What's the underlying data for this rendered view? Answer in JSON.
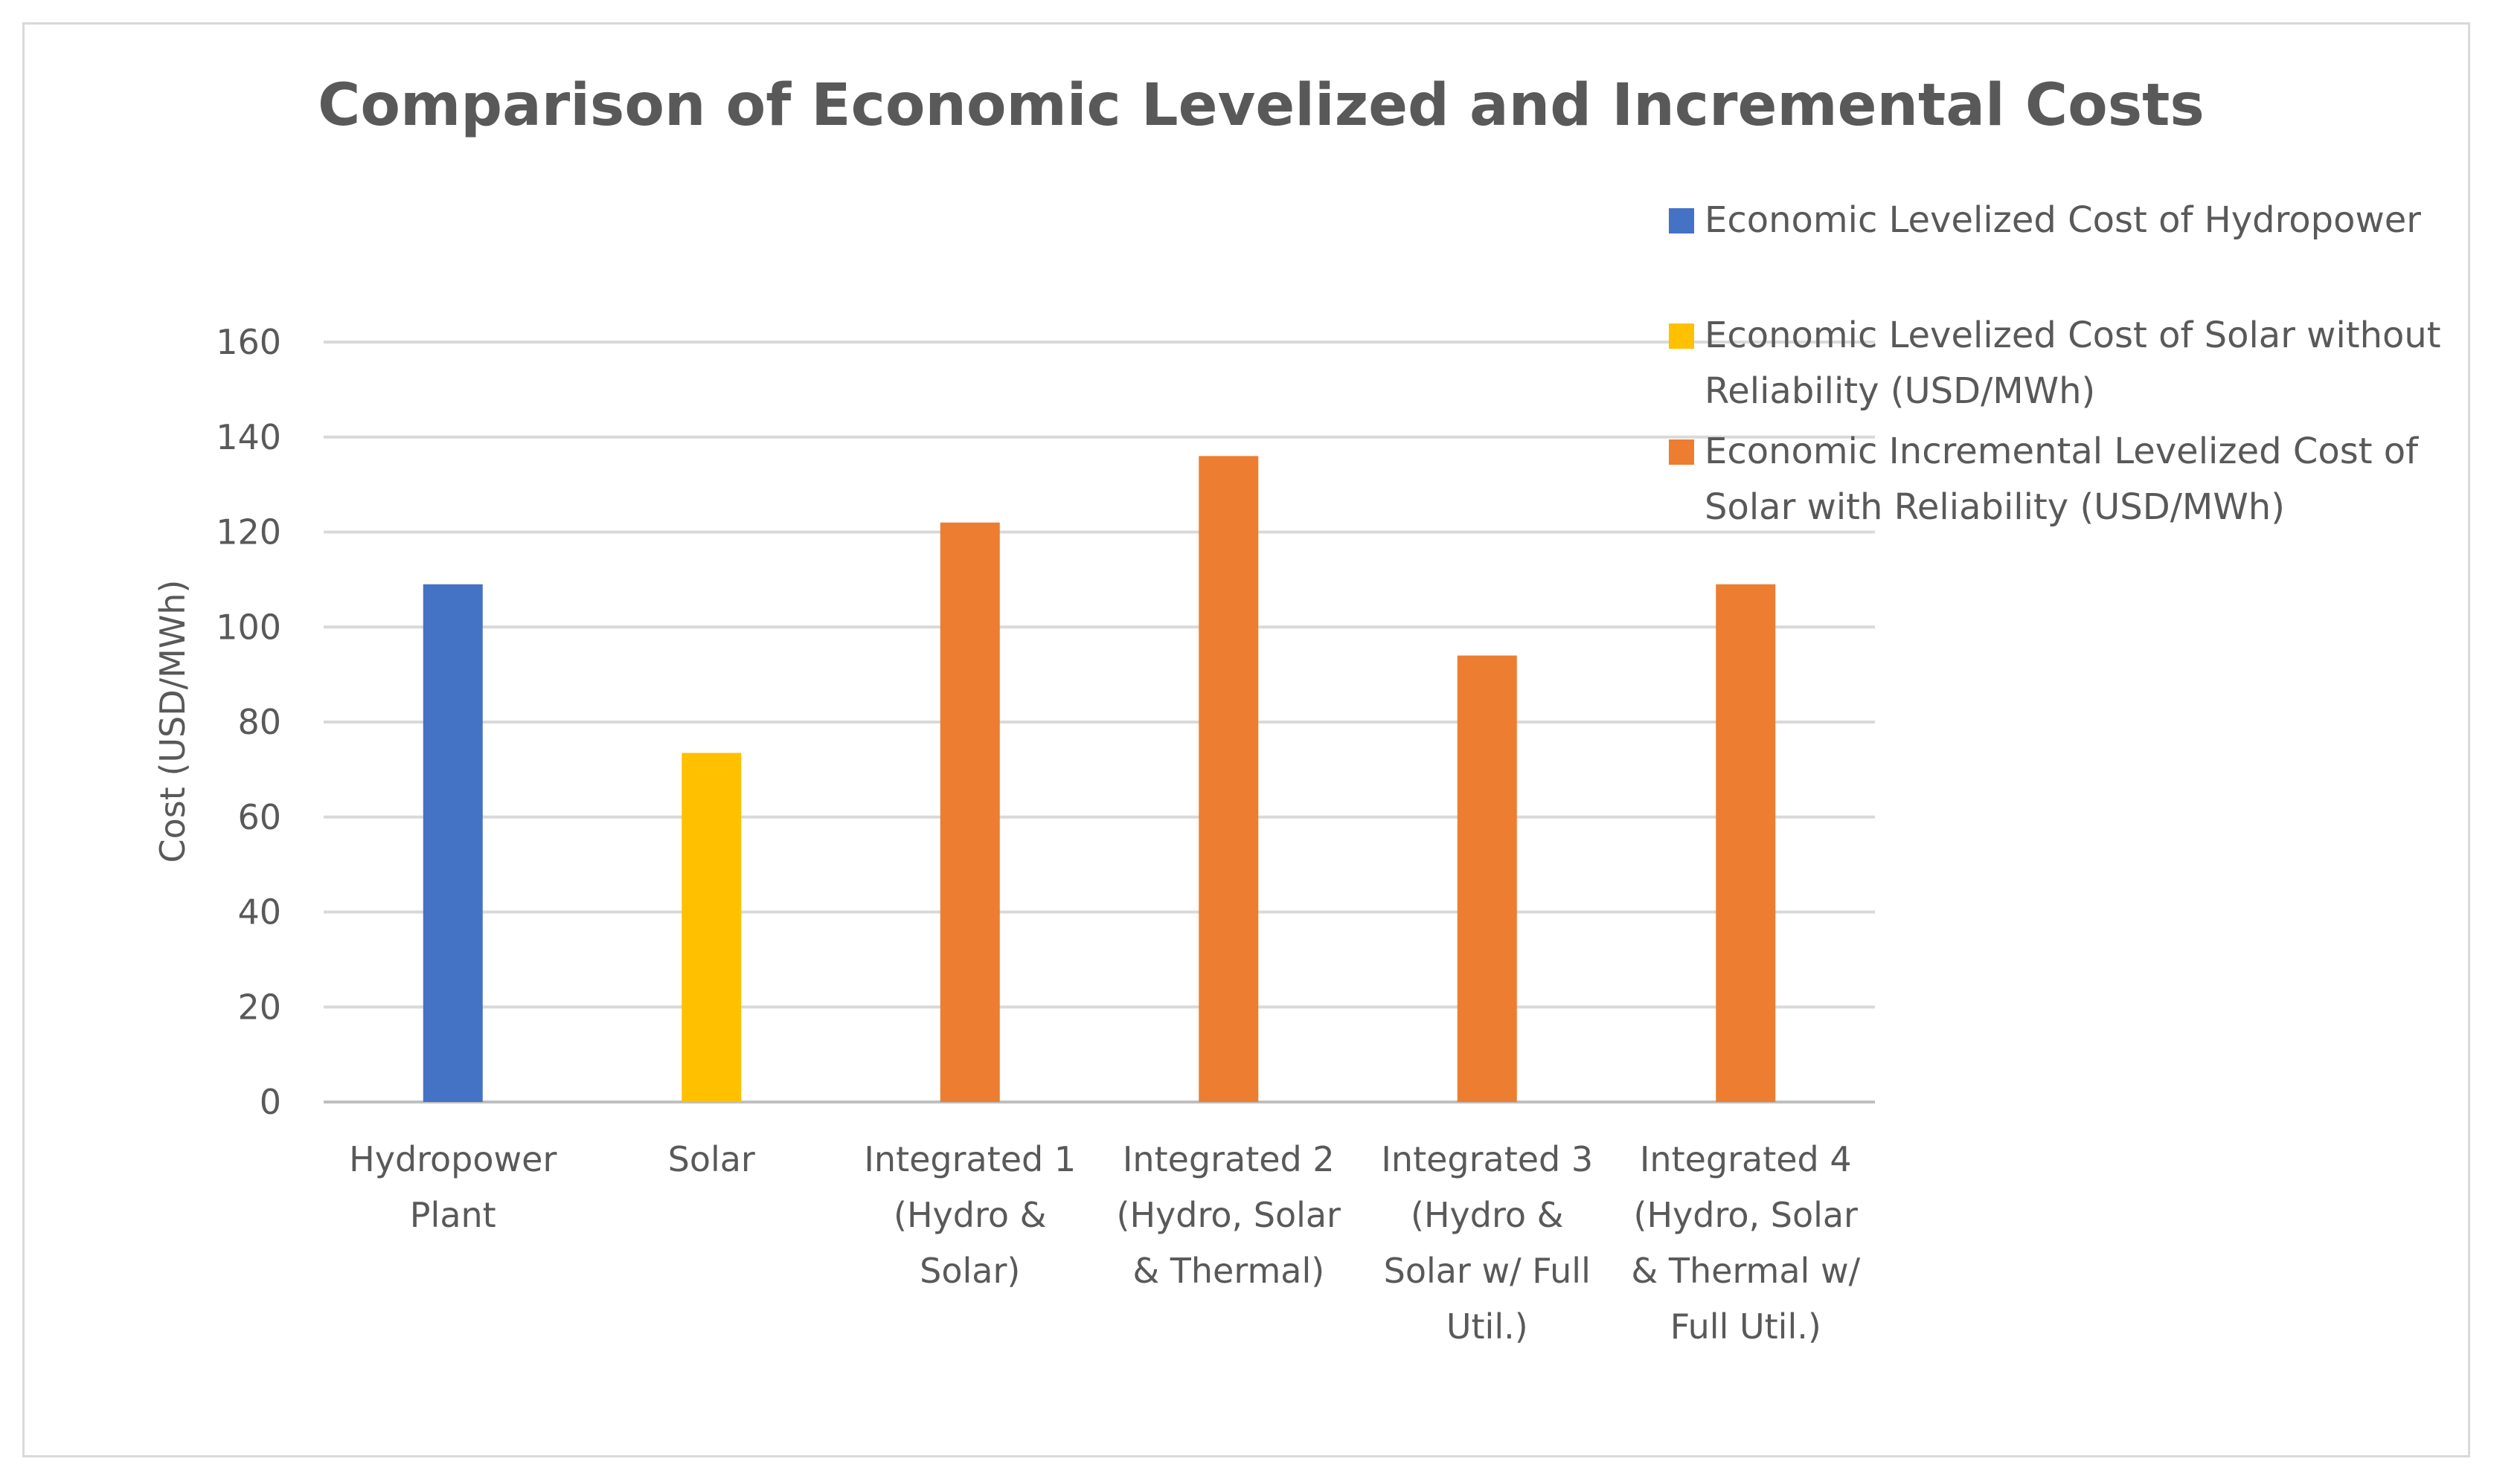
{
  "chart_data": {
    "type": "bar",
    "title": "Comparison of Economic Levelized and Incremental Costs",
    "xlabel": "",
    "ylabel": "Cost (USD/MWh)",
    "ylim": [
      0,
      160
    ],
    "yticks": [
      "0",
      "20",
      "40",
      "60",
      "80",
      "100",
      "120",
      "140",
      "160"
    ],
    "grid": true,
    "legend_position": "top-right",
    "categories": [
      [
        "Hydropower",
        "Plant"
      ],
      [
        "Solar"
      ],
      [
        "Integrated 1",
        "(Hydro &",
        "Solar)"
      ],
      [
        "Integrated 2",
        "(Hydro, Solar",
        "& Thermal)"
      ],
      [
        "Integrated 3",
        "(Hydro &",
        "Solar w/ Full",
        "Util.)"
      ],
      [
        "Integrated 4",
        "(Hydro, Solar",
        "& Thermal w/",
        "Full Util.)"
      ]
    ],
    "series": [
      {
        "name_lines": [
          "Economic Levelized Cost of Hydropower"
        ],
        "color": "#4472C4",
        "values": [
          109,
          null,
          null,
          null,
          null,
          null
        ]
      },
      {
        "name_lines": [
          "Economic Levelized Cost of Solar without",
          "Reliability (USD/MWh)"
        ],
        "color": "#FFC000",
        "values": [
          null,
          73.5,
          null,
          null,
          null,
          null
        ]
      },
      {
        "name_lines": [
          "Economic Incremental Levelized Cost of",
          "Solar with Reliability (USD/MWh)"
        ],
        "color": "#ED7D31",
        "values": [
          null,
          null,
          122,
          136,
          94,
          109
        ]
      }
    ]
  }
}
